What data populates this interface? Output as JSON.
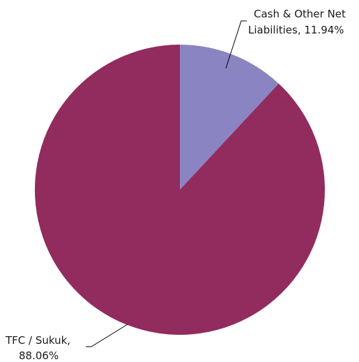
{
  "chart_data": {
    "type": "pie",
    "title": "",
    "slices": [
      {
        "label_lines": [
          "Cash & Other Net",
          "Liabilities, 11.94%"
        ],
        "value": 11.94,
        "color": "#8b84c2"
      },
      {
        "label_lines": [
          "TFC / Sukuk,",
          "88.06%"
        ],
        "value": 88.06,
        "color": "#922b5e"
      }
    ],
    "legend": "none",
    "start_angle": "12 o'clock",
    "direction": "clockwise"
  }
}
